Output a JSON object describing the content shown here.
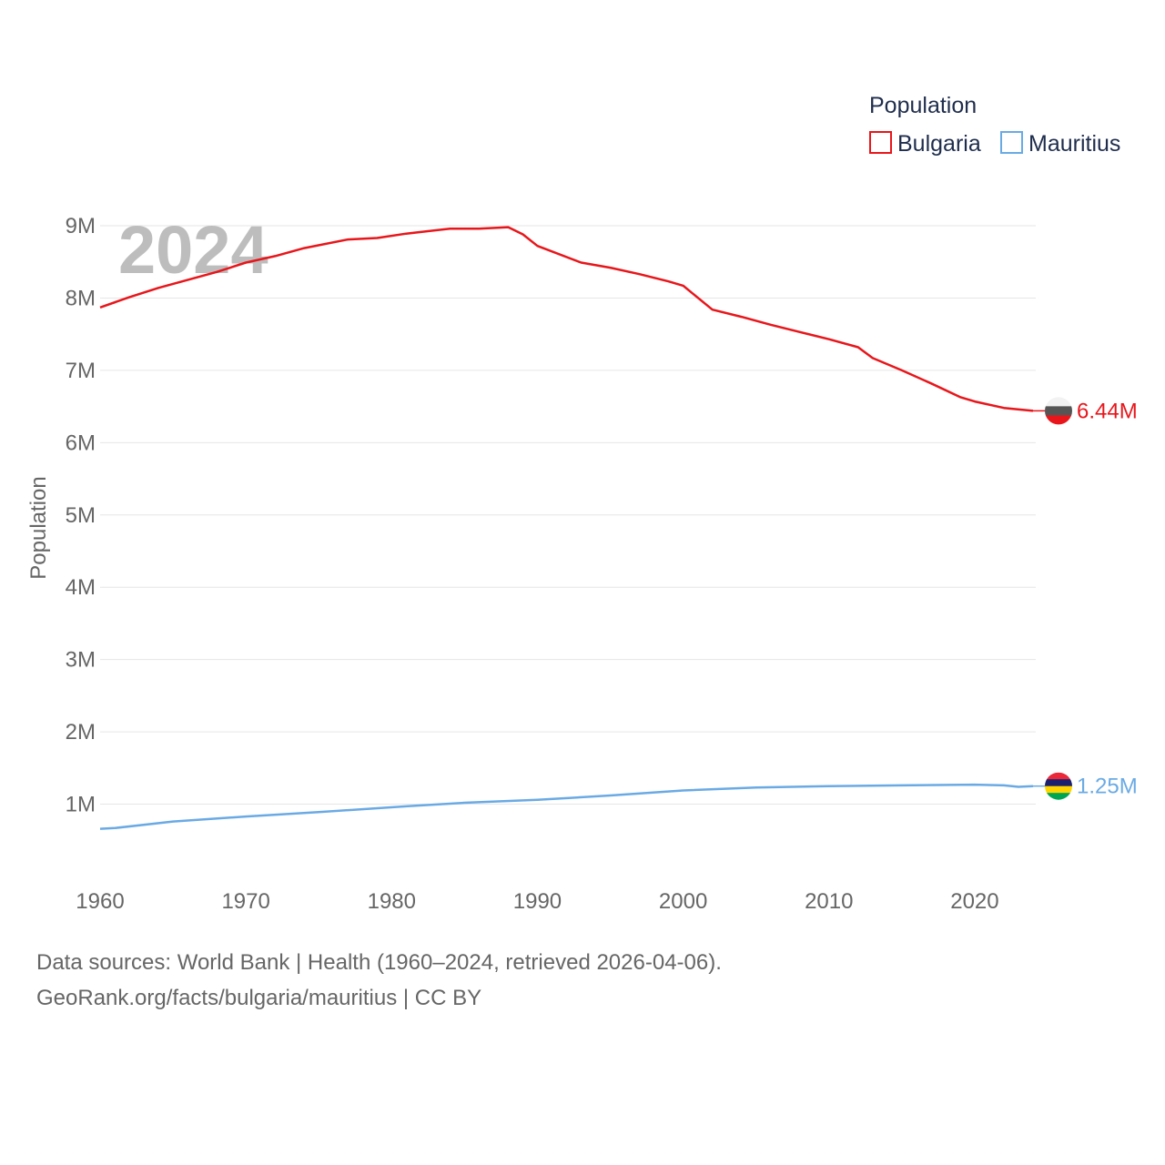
{
  "chart_data": {
    "type": "line",
    "legend_title": "Population",
    "ylabel": "Population",
    "watermark_year": "2024",
    "x_ticks": [
      1960,
      1970,
      1980,
      1990,
      2000,
      2010,
      2020
    ],
    "x_tick_labels": [
      "1960",
      "1970",
      "1980",
      "1990",
      "2000",
      "2010",
      "2020"
    ],
    "xlim": [
      1960,
      2024
    ],
    "y_ticks": [
      1000000,
      2000000,
      3000000,
      4000000,
      5000000,
      6000000,
      7000000,
      8000000,
      9000000
    ],
    "y_tick_labels": [
      "1M",
      "2M",
      "3M",
      "4M",
      "5M",
      "6M",
      "7M",
      "8M",
      "9M"
    ],
    "ylim": [
      0,
      9000000
    ],
    "grid": true,
    "legend_position": "top-right",
    "series": [
      {
        "name": "Bulgaria",
        "color": "#e8161b",
        "end_label": "6.44M",
        "flag_colors": [
          "#f2f2f2",
          "#555555",
          "#e8161b"
        ],
        "x": [
          1960,
          1962,
          1964,
          1966,
          1968,
          1970,
          1972,
          1974,
          1977,
          1979,
          1981,
          1984,
          1986,
          1988,
          1989,
          1990,
          1993,
          1995,
          1997,
          1999,
          2000,
          2002,
          2004,
          2006,
          2008,
          2010,
          2012,
          2013,
          2015,
          2017,
          2019,
          2020,
          2022,
          2024
        ],
        "values": [
          7870000,
          8010000,
          8140000,
          8250000,
          8360000,
          8490000,
          8580000,
          8690000,
          8810000,
          8830000,
          8890000,
          8960000,
          8960000,
          8980000,
          8880000,
          8720000,
          8490000,
          8420000,
          8330000,
          8230000,
          8170000,
          7840000,
          7740000,
          7630000,
          7530000,
          7430000,
          7320000,
          7170000,
          7000000,
          6820000,
          6630000,
          6570000,
          6480000,
          6440000
        ]
      },
      {
        "name": "Mauritius",
        "color": "#6aaae4",
        "end_label": "1.25M",
        "flag_colors": [
          "#ea2839",
          "#1a206d",
          "#ffd500",
          "#00a551"
        ],
        "x": [
          1960,
          1961,
          1965,
          1970,
          1975,
          1981,
          1985,
          1990,
          1995,
          2000,
          2005,
          2010,
          2015,
          2020,
          2022,
          2023,
          2024
        ],
        "values": [
          660000,
          670000,
          760000,
          830000,
          890000,
          970000,
          1020000,
          1060000,
          1120000,
          1190000,
          1230000,
          1250000,
          1260000,
          1270000,
          1260000,
          1240000,
          1250000
        ]
      }
    ]
  },
  "footer": {
    "sources": "Data sources: World Bank | Health (1960–2024, retrieved 2026-04-06).",
    "attribution": "GeoRank.org/facts/bulgaria/mauritius | CC BY"
  }
}
